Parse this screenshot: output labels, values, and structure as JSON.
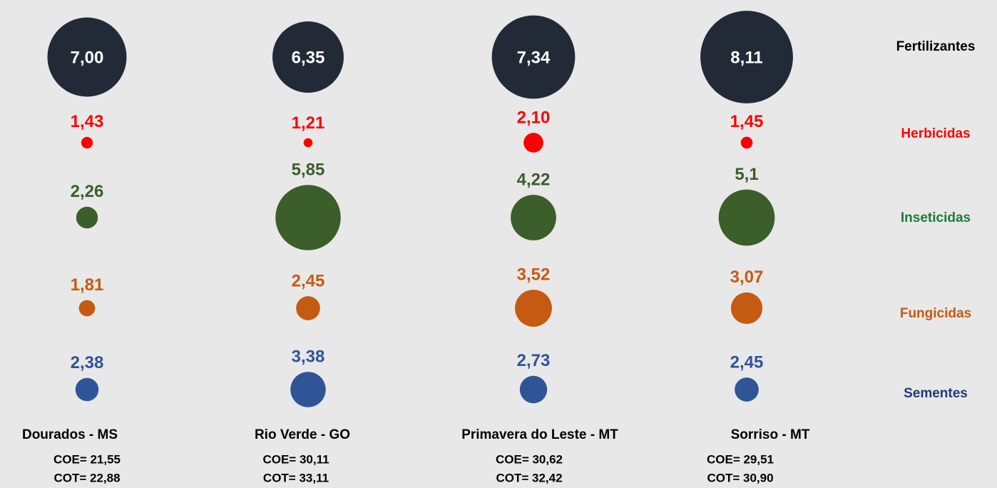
{
  "chart_data": {
    "type": "bubble",
    "categories": [
      "Dourados - MS",
      "Rio Verde - GO",
      "Primavera do Leste - MT",
      "Sorriso - MT"
    ],
    "coe": [
      "COE= 21,55",
      "COE= 30,11",
      "COE= 30,62",
      "COE= 29,51"
    ],
    "cot": [
      "COT= 22,88",
      "COT= 33,11",
      "COT= 32,42",
      "COT= 30,90"
    ],
    "series": [
      {
        "name": "Fertilizantes",
        "color": "#232a37",
        "values": [
          7.0,
          6.35,
          7.34,
          8.11
        ],
        "value_labels": [
          "7,00",
          "6,35",
          "7,34",
          "8,11"
        ]
      },
      {
        "name": "Herbicidas",
        "color": "#ff0000",
        "values": [
          1.43,
          1.21,
          2.1,
          1.45
        ],
        "value_labels": [
          "1,43",
          "1,21",
          "2,10",
          "1,45"
        ]
      },
      {
        "name": "Inseticidas",
        "color": "#3b5e2a",
        "values": [
          2.26,
          5.85,
          4.22,
          5.1
        ],
        "value_labels": [
          "2,26",
          "5,85",
          "4,22",
          "5,1"
        ]
      },
      {
        "name": "Fungicidas",
        "color": "#c55a11",
        "values": [
          1.81,
          2.45,
          3.52,
          3.07
        ],
        "value_labels": [
          "1,81",
          "2,45",
          "3,52",
          "3,07"
        ]
      },
      {
        "name": "Sementes",
        "color": "#2f5597",
        "values": [
          2.38,
          3.38,
          2.73,
          2.45
        ],
        "value_labels": [
          "2,38",
          "3,38",
          "2,73",
          "2,45"
        ]
      }
    ]
  }
}
